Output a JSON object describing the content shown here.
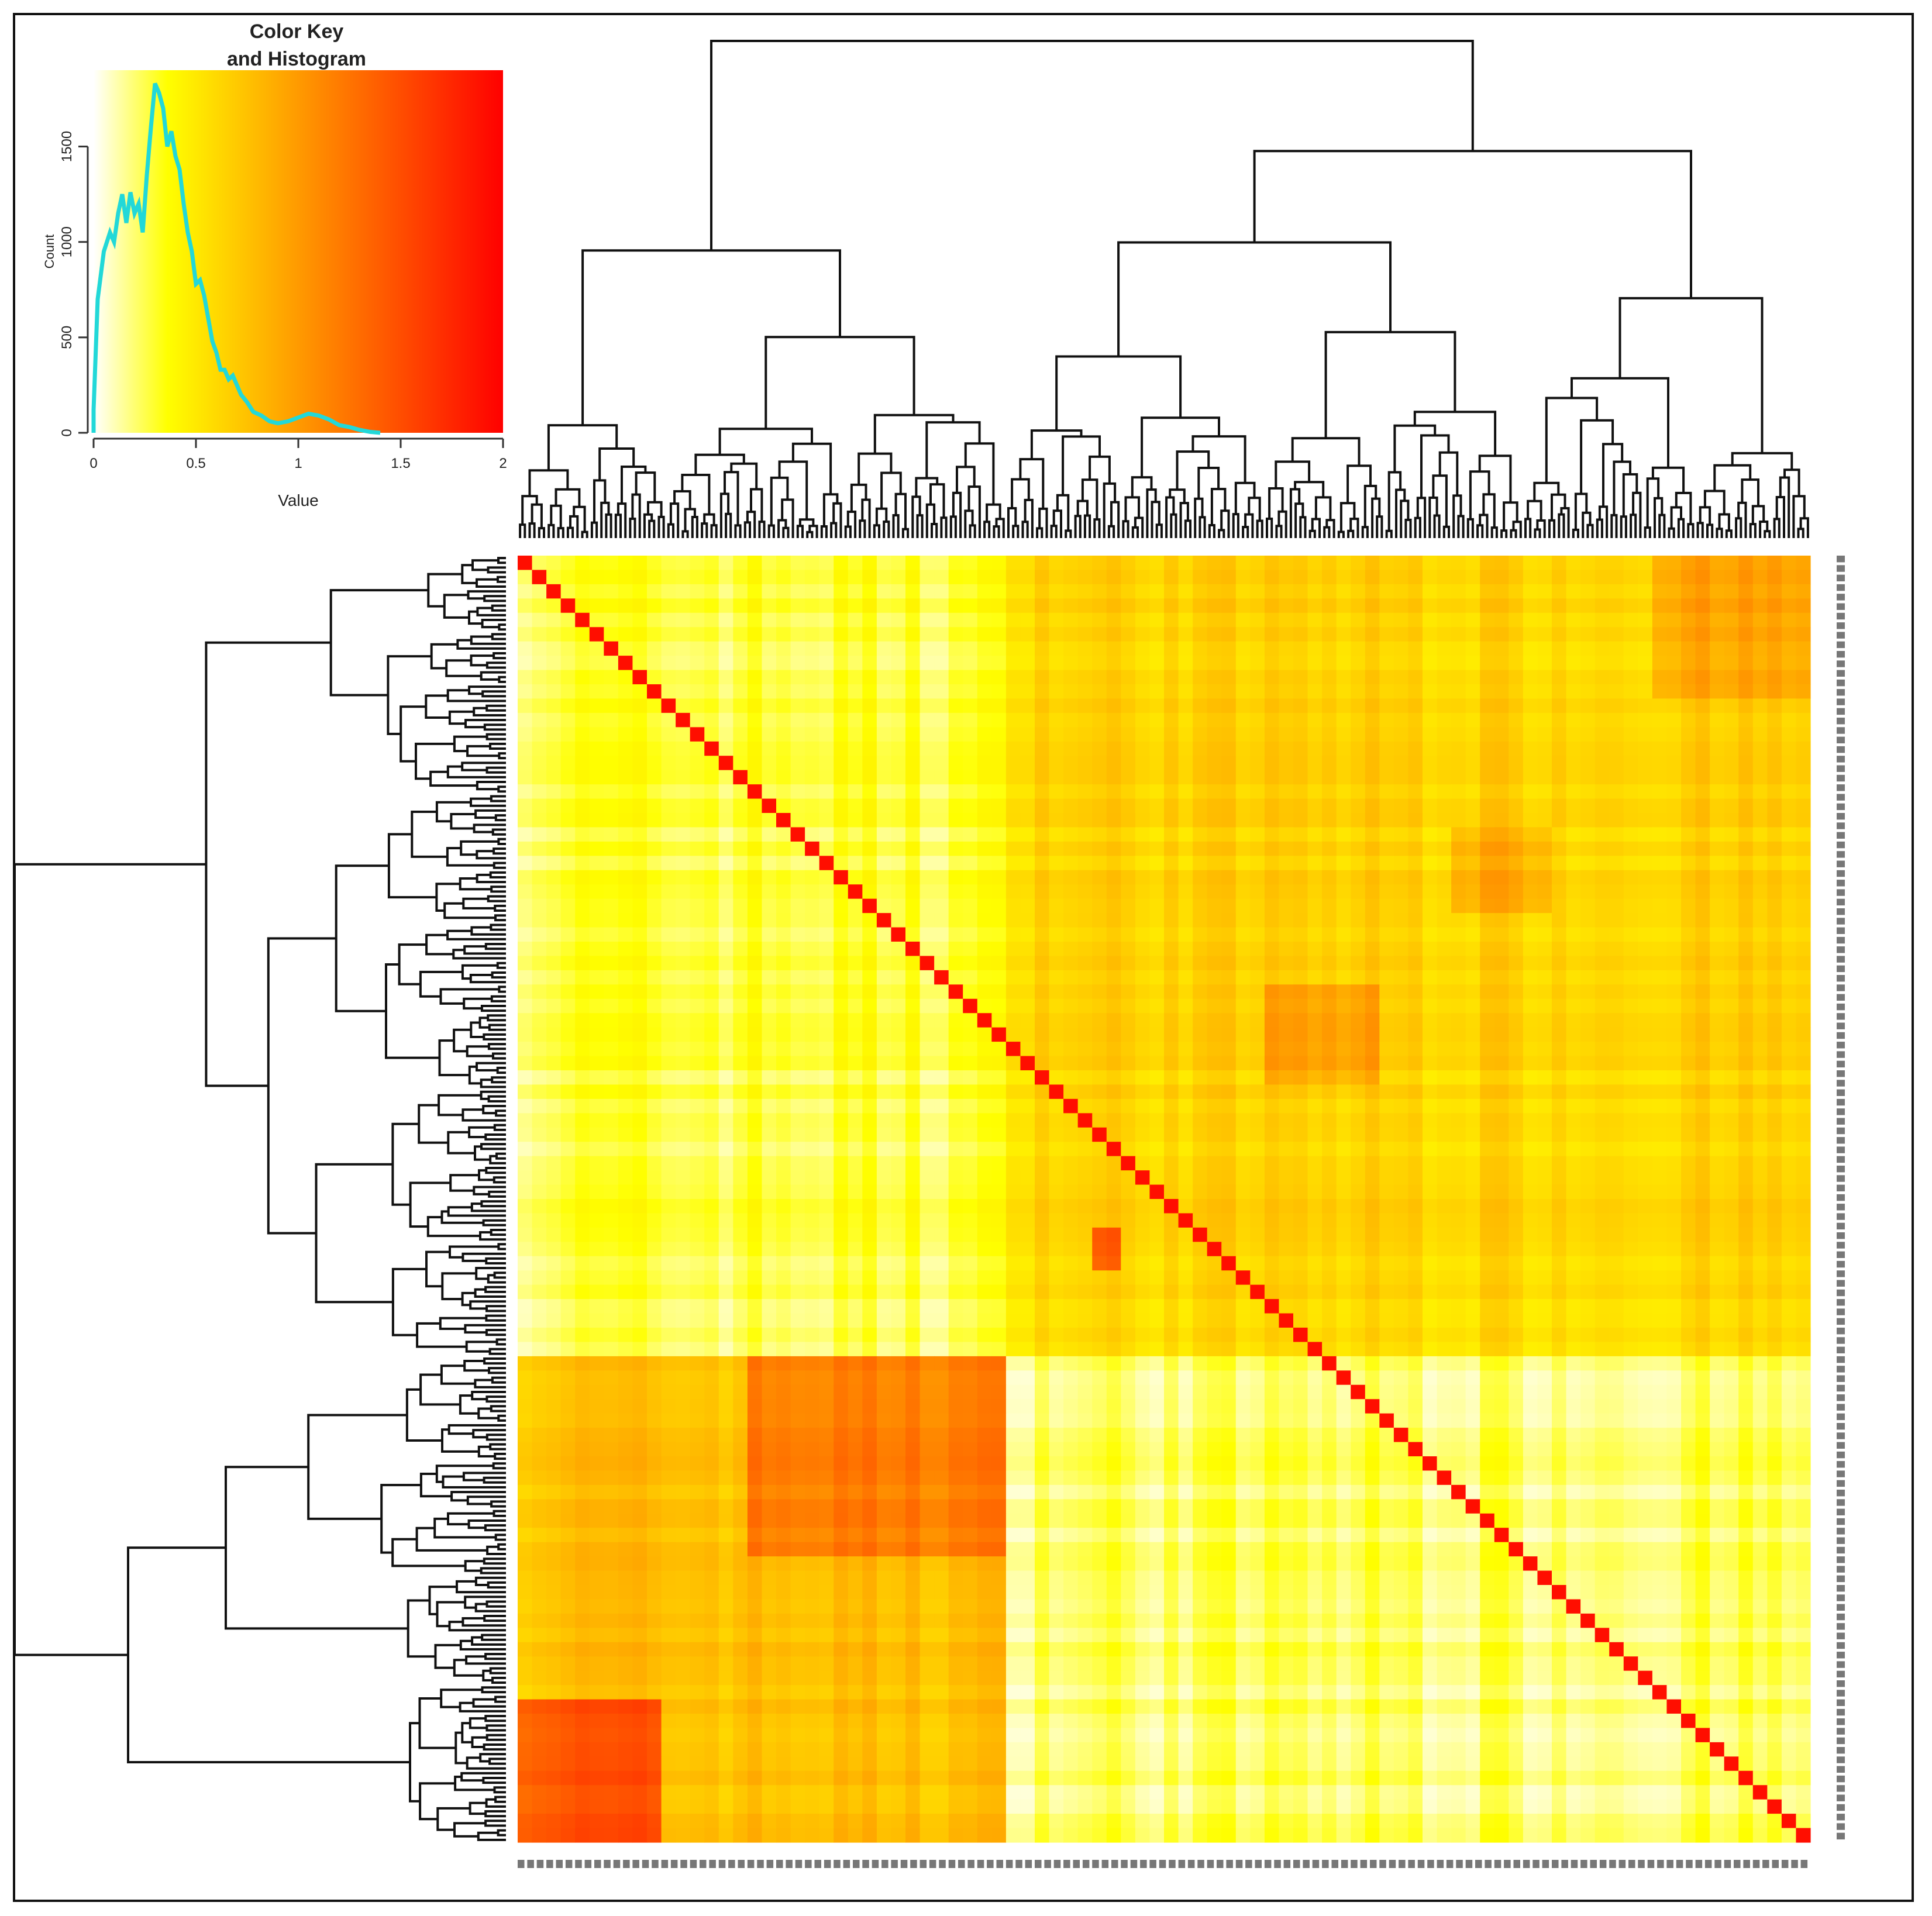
{
  "chart_data": [
    {
      "type": "area",
      "title": "Color Key\nand Histogram",
      "xlabel": "Value",
      "ylabel": "Count",
      "xlim": [
        0,
        2
      ],
      "ylim": [
        0,
        1900
      ],
      "x_ticks": [
        "0",
        "0.5",
        "1",
        "1.5",
        "2"
      ],
      "y_ticks": [
        "0",
        "500",
        "1000",
        "1500"
      ],
      "color_scale": [
        "#ffffff",
        "#ffff00",
        "#ff9a00",
        "#ff0000"
      ],
      "histogram_color": "#22d8d8",
      "histogram": {
        "x": [
          0.0,
          0.02,
          0.05,
          0.08,
          0.1,
          0.12,
          0.14,
          0.16,
          0.18,
          0.2,
          0.22,
          0.24,
          0.26,
          0.28,
          0.3,
          0.32,
          0.34,
          0.36,
          0.38,
          0.4,
          0.42,
          0.44,
          0.46,
          0.48,
          0.5,
          0.52,
          0.54,
          0.56,
          0.58,
          0.6,
          0.62,
          0.64,
          0.66,
          0.68,
          0.7,
          0.72,
          0.75,
          0.78,
          0.82,
          0.86,
          0.9,
          0.95,
          1.0,
          1.05,
          1.1,
          1.15,
          1.2,
          1.25,
          1.3,
          1.35
        ],
        "y": [
          120,
          700,
          950,
          1050,
          1000,
          1150,
          1250,
          1100,
          1260,
          1150,
          1200,
          1050,
          1350,
          1600,
          1830,
          1780,
          1700,
          1500,
          1580,
          1450,
          1380,
          1200,
          1050,
          950,
          780,
          800,
          720,
          600,
          480,
          420,
          330,
          330,
          280,
          300,
          250,
          200,
          160,
          110,
          90,
          60,
          50,
          60,
          80,
          100,
          90,
          70,
          40,
          30,
          15,
          5
        ]
      }
    },
    {
      "type": "heatmap",
      "title": "",
      "xlabel": "",
      "ylabel": "",
      "value_range": [
        0,
        2
      ],
      "color_scale": [
        "#ffffff",
        "#ffff00",
        "#ff9a00",
        "#ff0000"
      ],
      "n_rows": 270,
      "n_cols": 270,
      "row_order": "clustered (dendrogram, left)",
      "col_order": "clustered (dendrogram, top)",
      "diagonal_value": 1.05,
      "clusters": [
        {
          "rows": [
            0,
            168
          ],
          "cols": [
            0,
            102
          ],
          "mean_value": 0.15
        },
        {
          "rows": [
            0,
            168
          ],
          "cols": [
            102,
            270
          ],
          "mean_value": 0.35
        },
        {
          "rows": [
            168,
            270
          ],
          "cols": [
            0,
            102
          ],
          "mean_value": 0.42
        },
        {
          "rows": [
            168,
            270
          ],
          "cols": [
            102,
            270
          ],
          "mean_value": 0.12
        },
        {
          "rows": [
            168,
            210
          ],
          "cols": [
            48,
            102
          ],
          "mean_value": 0.65
        },
        {
          "rows": [
            240,
            270
          ],
          "cols": [
            0,
            28
          ],
          "mean_value": 0.8
        },
        {
          "rows": [
            0,
            30
          ],
          "cols": [
            235,
            270
          ],
          "mean_value": 0.5
        },
        {
          "rows": [
            90,
            110
          ],
          "cols": [
            155,
            178
          ],
          "mean_value": 0.5
        },
        {
          "rows": [
            140,
            150
          ],
          "cols": [
            119,
            126
          ],
          "mean_value": 0.75
        },
        {
          "rows": [
            55,
            75
          ],
          "cols": [
            193,
            215
          ],
          "mean_value": 0.48
        }
      ]
    }
  ]
}
